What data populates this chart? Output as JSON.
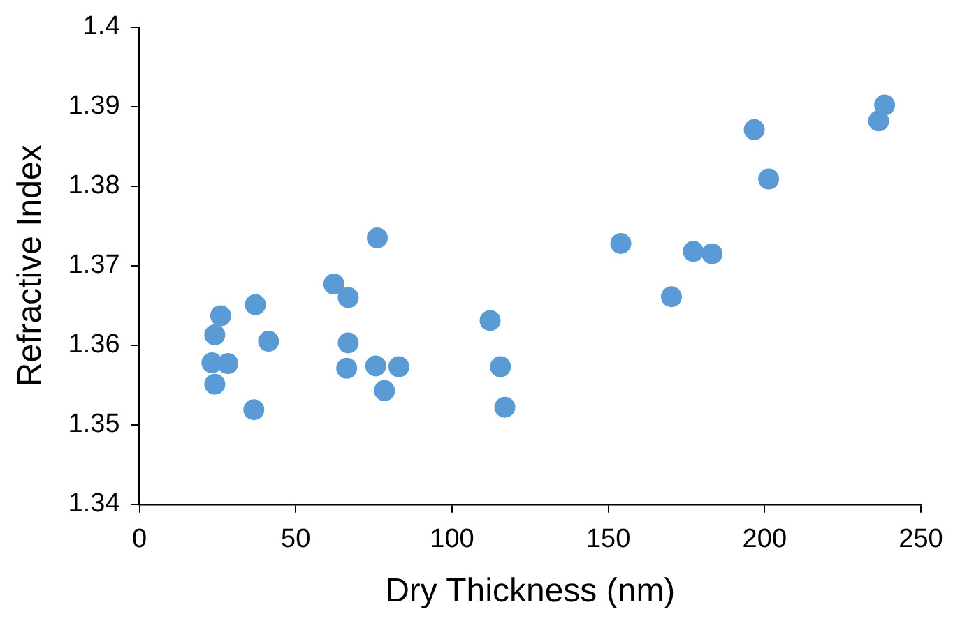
{
  "chart_data": {
    "type": "scatter",
    "xlabel": "Dry Thickness (nm)",
    "ylabel": "Refractive Index",
    "xlim": [
      0,
      250
    ],
    "xticks": [
      0,
      50,
      100,
      150,
      200,
      250
    ],
    "ylim": [
      1.34,
      1.4
    ],
    "yticks": [
      1.34,
      1.35,
      1.36,
      1.37,
      1.38,
      1.39,
      1.4
    ],
    "grid": false,
    "legend": false,
    "marker": "circle",
    "series": [
      {
        "color": "#5b9bd5",
        "x": [
          23.2,
          24.1,
          24.1,
          26.0,
          28.3,
          36.6,
          37.1,
          41.3,
          62.2,
          66.8,
          66.8,
          66.3,
          76.1,
          75.6,
          78.4,
          83.0,
          112.2,
          115.5,
          116.9,
          154.0,
          170.2,
          177.2,
          183.2,
          196.7,
          201.3,
          236.5,
          238.4
        ],
        "values": [
          1.3578,
          1.3551,
          1.3613,
          1.3637,
          1.3577,
          1.3519,
          1.3651,
          1.3605,
          1.3677,
          1.366,
          1.3603,
          1.3571,
          1.3735,
          1.3574,
          1.3543,
          1.3573,
          1.3631,
          1.3573,
          1.3522,
          1.3728,
          1.3661,
          1.3718,
          1.3715,
          1.3871,
          1.3809,
          1.3882,
          1.3902
        ]
      }
    ]
  }
}
